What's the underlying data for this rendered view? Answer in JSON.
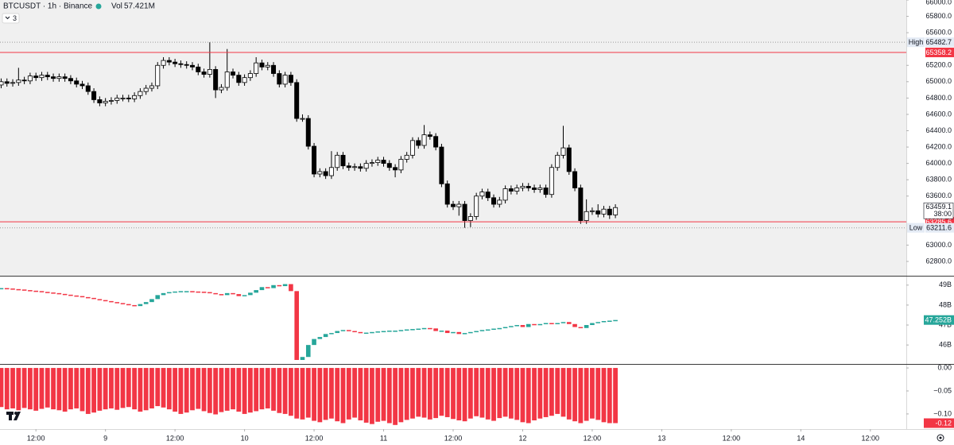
{
  "header": {
    "symbol": "BTCUSDT · 1h · Binance",
    "volume_label": "Vol",
    "volume": "57.421M",
    "collapse_count": "3"
  },
  "chart_data": [
    {
      "type": "candlestick",
      "up_color": "#ffffff",
      "down_color": "#000000",
      "border_color": "#000000",
      "xlim": [
        -0.2,
        156.2
      ],
      "xticks": [
        {
          "value": 6,
          "label": "12:00"
        },
        {
          "value": 18,
          "label": "9"
        },
        {
          "value": 30,
          "label": "12:00"
        },
        {
          "value": 42,
          "label": "10"
        },
        {
          "value": 54,
          "label": "12:00"
        },
        {
          "value": 66,
          "label": "11"
        },
        {
          "value": 78,
          "label": "12:00"
        },
        {
          "value": 90,
          "label": "12"
        },
        {
          "value": 102,
          "label": "12:00"
        },
        {
          "value": 114,
          "label": "13"
        },
        {
          "value": 126,
          "label": "12:00"
        },
        {
          "value": 138,
          "label": "14"
        },
        {
          "value": 150,
          "label": "12:00"
        }
      ],
      "ylim": [
        62625,
        66000
      ],
      "yticks": [
        {
          "value": 66000,
          "label": "66000.0"
        },
        {
          "value": 65800,
          "label": "65800.0"
        },
        {
          "value": 65600,
          "label": "65600.0"
        },
        {
          "value": 65200,
          "label": "65200.0"
        },
        {
          "value": 65000,
          "label": "65000.0"
        },
        {
          "value": 64800,
          "label": "64800.0"
        },
        {
          "value": 64600,
          "label": "64600.0"
        },
        {
          "value": 64400,
          "label": "64400.0"
        },
        {
          "value": 64200,
          "label": "64200.0"
        },
        {
          "value": 64000,
          "label": "64000.0"
        },
        {
          "value": 63800,
          "label": "63800.0"
        },
        {
          "value": 63600,
          "label": "63600.0"
        },
        {
          "value": 63000,
          "label": "63000.0"
        },
        {
          "value": 62800,
          "label": "62800.0"
        }
      ],
      "grid": false,
      "countdown": "38:00",
      "price_lines": [
        {
          "label": "High",
          "value": 65482.7,
          "style": "dotted"
        },
        {
          "value": 65358.2,
          "style": "solid",
          "color": "#f23645"
        },
        {
          "value": 63285.6,
          "style": "solid",
          "color": "#f23645"
        },
        {
          "label": "Low",
          "value": 63211.6,
          "style": "dotted"
        }
      ],
      "open": [
        64960,
        65000,
        64980,
        64990,
        65020,
        65010,
        65070,
        65050,
        65080,
        65060,
        65040,
        65060,
        65040,
        65010,
        64970,
        64950,
        64880,
        64780,
        64740,
        64760,
        64770,
        64800,
        64800,
        64790,
        64830,
        64880,
        64920,
        64950,
        65200,
        65260,
        65240,
        65220,
        65210,
        65200,
        65180,
        65120,
        65090,
        65150,
        64900,
        64930,
        65120,
        65080,
        64990,
        65050,
        65100,
        65230,
        65180,
        65200,
        65100,
        64970,
        65080,
        64990,
        64550,
        64550,
        64210,
        63870,
        63900,
        63850,
        63950,
        64100,
        63970,
        63950,
        63960,
        63940,
        64000,
        64010,
        64040,
        64000,
        63950,
        63920,
        64050,
        64100,
        64280,
        64220,
        64350,
        64330,
        64200,
        63750,
        63500,
        63470,
        63500,
        63300,
        63350,
        63600,
        63650,
        63580,
        63500,
        63550,
        63690,
        63660,
        63700,
        63720,
        63700,
        63680,
        63700,
        63620,
        63950,
        64100,
        64190,
        63900,
        63700,
        63300,
        63410,
        63420,
        63380,
        63440,
        63370
      ],
      "high": [
        65040,
        65040,
        65030,
        65170,
        65060,
        65110,
        65110,
        65120,
        65120,
        65100,
        65100,
        65100,
        65080,
        65050,
        65010,
        64990,
        64920,
        64820,
        64800,
        64810,
        64840,
        64840,
        64840,
        64870,
        64920,
        64960,
        64990,
        65240,
        65300,
        65300,
        65280,
        65260,
        65250,
        65240,
        65220,
        65160,
        65482.7,
        65190,
        64970,
        65400,
        65160,
        65120,
        65090,
        65140,
        65300,
        65270,
        65240,
        65240,
        65140,
        65120,
        65120,
        65030,
        64600,
        64590,
        64250,
        63940,
        63940,
        64150,
        64140,
        64140,
        64010,
        64000,
        64000,
        64040,
        64050,
        64080,
        64080,
        64040,
        63990,
        64090,
        64140,
        64320,
        64320,
        64470,
        64390,
        64370,
        64240,
        63790,
        63540,
        63540,
        63540,
        63390,
        63640,
        63690,
        63690,
        63620,
        63590,
        63730,
        63730,
        63740,
        63760,
        63760,
        63740,
        63740,
        63740,
        63990,
        64140,
        64460,
        64230,
        63940,
        63740,
        63560,
        63460,
        63500,
        63480,
        63480,
        63500
      ],
      "low": [
        64920,
        64940,
        64940,
        64950,
        64970,
        64970,
        65010,
        65010,
        65020,
        65000,
        65000,
        65000,
        64970,
        64930,
        64910,
        64840,
        64740,
        64700,
        64700,
        64720,
        64730,
        64760,
        64750,
        64750,
        64790,
        64840,
        64880,
        64910,
        65160,
        65200,
        65180,
        65170,
        65160,
        65140,
        65080,
        65050,
        65050,
        64800,
        64860,
        64890,
        65040,
        64950,
        64950,
        65010,
        65060,
        65140,
        65140,
        65060,
        64930,
        64930,
        64950,
        64510,
        64510,
        64170,
        63830,
        63830,
        63810,
        63810,
        63910,
        63930,
        63910,
        63910,
        63900,
        63900,
        63960,
        63970,
        63960,
        63910,
        63830,
        63880,
        64010,
        64060,
        64180,
        64180,
        64290,
        64160,
        63710,
        63460,
        63430,
        63360,
        63211.6,
        63220,
        63310,
        63560,
        63540,
        63460,
        63460,
        63510,
        63620,
        63620,
        63660,
        63660,
        63640,
        63640,
        63580,
        63580,
        63910,
        64060,
        63860,
        63660,
        63260,
        63260,
        63370,
        63340,
        63340,
        63320,
        63330
      ],
      "close": [
        65000,
        64980,
        64990,
        65020,
        65010,
        65070,
        65050,
        65080,
        65060,
        65040,
        65060,
        65040,
        65010,
        64970,
        64950,
        64880,
        64780,
        64740,
        64760,
        64770,
        64800,
        64800,
        64790,
        64830,
        64880,
        64920,
        64950,
        65200,
        65260,
        65240,
        65220,
        65210,
        65200,
        65180,
        65120,
        65090,
        65150,
        64900,
        64930,
        65120,
        65080,
        64990,
        65050,
        65100,
        65230,
        65180,
        65200,
        65100,
        64970,
        65080,
        64990,
        64550,
        64550,
        64210,
        63870,
        63900,
        63850,
        63950,
        64100,
        63970,
        63950,
        63960,
        63940,
        64000,
        64010,
        64040,
        64000,
        63950,
        63920,
        64050,
        64100,
        64280,
        64220,
        64350,
        64330,
        64200,
        63750,
        63500,
        63470,
        63500,
        63300,
        63350,
        63600,
        63650,
        63580,
        63500,
        63550,
        63690,
        63660,
        63700,
        63720,
        63700,
        63680,
        63700,
        63620,
        63950,
        64100,
        64190,
        63900,
        63700,
        63300,
        63410,
        63420,
        63380,
        63440,
        63370,
        63459.1
      ]
    },
    {
      "type": "candlestick",
      "up_color": "#26a69a",
      "down_color": "#f23645",
      "ylim": [
        45.05,
        49.43
      ],
      "yticks": [
        {
          "value": 49,
          "label": "49B"
        },
        {
          "value": 48,
          "label": "48B"
        },
        {
          "value": 47,
          "label": "47B"
        },
        {
          "value": 46,
          "label": "46B"
        }
      ],
      "values": [
        48.85,
        48.83,
        48.8,
        48.78,
        48.75,
        48.72,
        48.7,
        48.66,
        48.63,
        48.6,
        48.56,
        48.52,
        48.48,
        48.45,
        48.4,
        48.36,
        48.3,
        48.25,
        48.2,
        48.15,
        48.1,
        48.05,
        48.0,
        47.95,
        48.05,
        48.15,
        48.3,
        48.5,
        48.6,
        48.65,
        48.68,
        48.7,
        48.7,
        48.68,
        48.67,
        48.65,
        48.6,
        48.55,
        48.5,
        48.6,
        48.55,
        48.45,
        48.5,
        48.62,
        48.75,
        48.9,
        48.85,
        49.0,
        48.95,
        49.05,
        48.7,
        45.25,
        45.4,
        46.0,
        46.3,
        46.4,
        46.55,
        46.6,
        46.7,
        46.75,
        46.7,
        46.65,
        46.6,
        46.62,
        46.65,
        46.68,
        46.7,
        46.72,
        46.72,
        46.75,
        46.78,
        46.8,
        46.82,
        46.85,
        46.83,
        46.7,
        46.72,
        46.6,
        46.65,
        46.55,
        46.6,
        46.65,
        46.7,
        46.75,
        46.78,
        46.82,
        46.85,
        46.9,
        46.95,
        47.0,
        46.9,
        47.05,
        47.0,
        47.05,
        47.1,
        47.05,
        47.1,
        47.15,
        47.05,
        46.9,
        46.85,
        47.0,
        47.1,
        47.15,
        47.2,
        47.22,
        47.252
      ],
      "value_labels": {
        "106": "47.252B"
      }
    },
    {
      "type": "bar",
      "color": "#f23645",
      "ylim": [
        -0.133,
        0.007
      ],
      "yticks": [
        {
          "value": 0,
          "label": "0.00"
        },
        {
          "value": -0.05,
          "label": "−0.05"
        },
        {
          "value": -0.1,
          "label": "−0.10"
        }
      ],
      "values": [
        -0.085,
        -0.09,
        -0.088,
        -0.092,
        -0.087,
        -0.09,
        -0.093,
        -0.089,
        -0.086,
        -0.09,
        -0.092,
        -0.095,
        -0.09,
        -0.088,
        -0.094,
        -0.1,
        -0.097,
        -0.093,
        -0.09,
        -0.088,
        -0.091,
        -0.087,
        -0.085,
        -0.09,
        -0.095,
        -0.092,
        -0.088,
        -0.083,
        -0.086,
        -0.09,
        -0.095,
        -0.1,
        -0.097,
        -0.092,
        -0.089,
        -0.094,
        -0.098,
        -0.101,
        -0.096,
        -0.093,
        -0.09,
        -0.095,
        -0.1,
        -0.097,
        -0.094,
        -0.09,
        -0.088,
        -0.093,
        -0.098,
        -0.1,
        -0.104,
        -0.11,
        -0.112,
        -0.108,
        -0.115,
        -0.118,
        -0.113,
        -0.11,
        -0.116,
        -0.12,
        -0.112,
        -0.108,
        -0.114,
        -0.119,
        -0.122,
        -0.117,
        -0.115,
        -0.12,
        -0.124,
        -0.118,
        -0.113,
        -0.11,
        -0.106,
        -0.108,
        -0.112,
        -0.109,
        -0.104,
        -0.107,
        -0.111,
        -0.114,
        -0.116,
        -0.11,
        -0.105,
        -0.108,
        -0.112,
        -0.115,
        -0.109,
        -0.106,
        -0.11,
        -0.113,
        -0.118,
        -0.12,
        -0.114,
        -0.11,
        -0.107,
        -0.104,
        -0.1,
        -0.106,
        -0.112,
        -0.116,
        -0.12,
        -0.115,
        -0.11,
        -0.113,
        -0.118,
        -0.12,
        -0.12
      ],
      "value_labels": {
        "106": "-0.12"
      }
    }
  ]
}
